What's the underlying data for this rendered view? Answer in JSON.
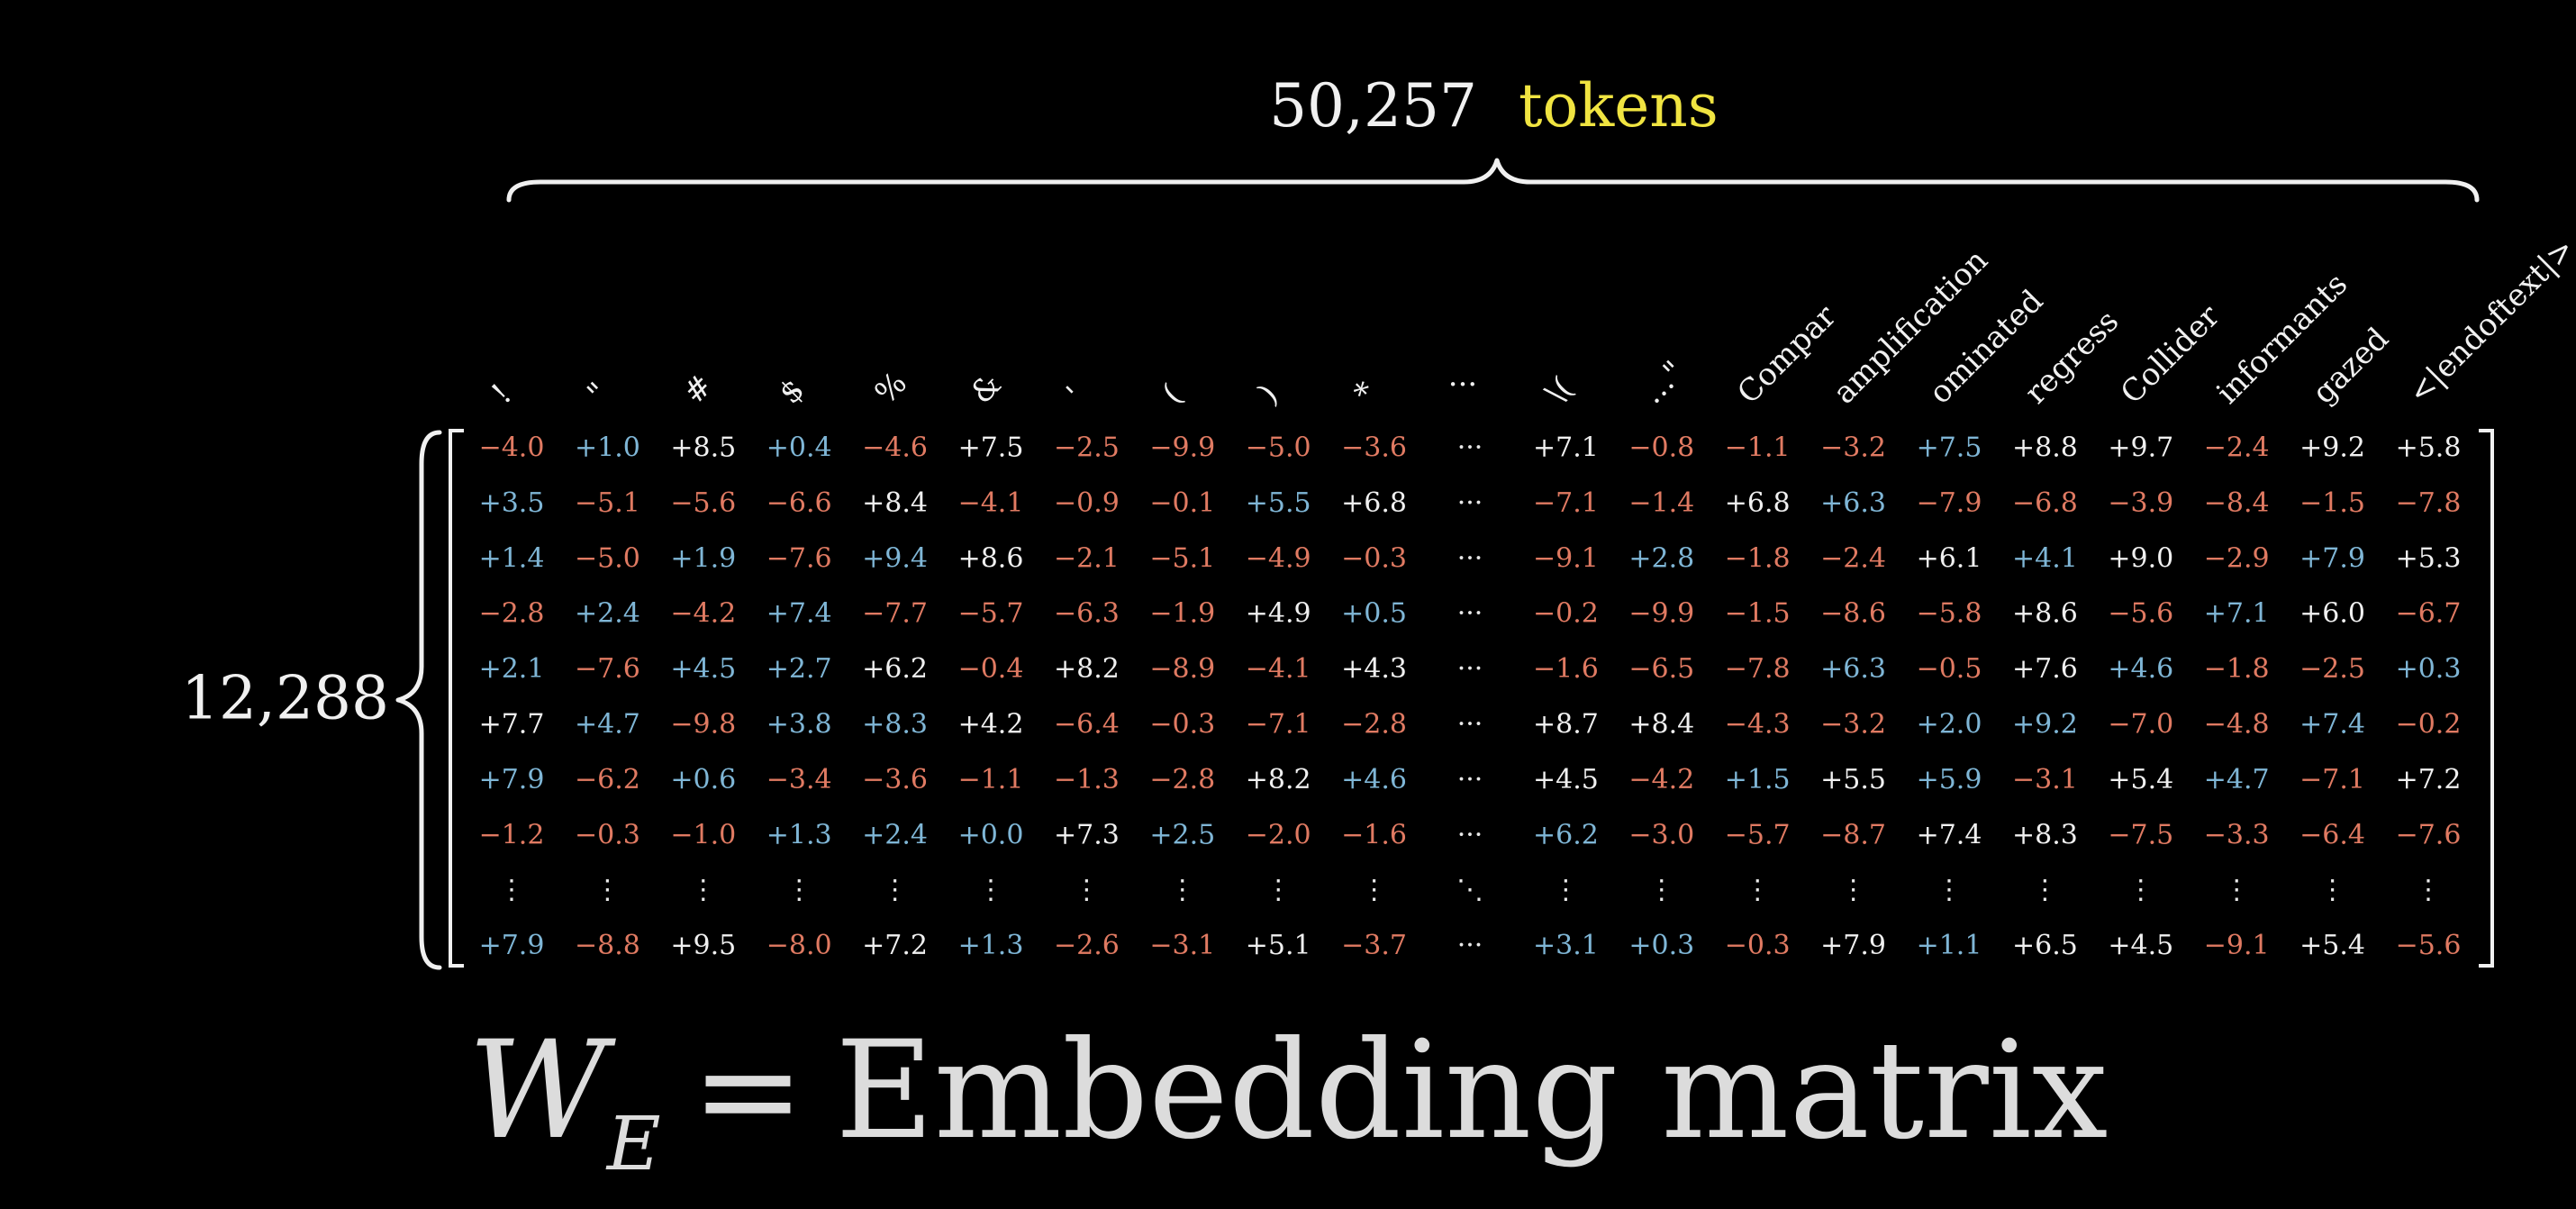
{
  "title": {
    "count": "50,257",
    "unit": "tokens"
  },
  "row_label": "12,288",
  "caption": {
    "symbol": "W",
    "subscript": "E",
    "equals": "=",
    "text": "Embedding matrix"
  },
  "colors": {
    "background": "#000000",
    "positive": "#7fb6d6",
    "negative": "#e07a62",
    "neutral_strong": "#f0f0f0",
    "tokens_word": "#f0e441",
    "caption": "#dcdcdc"
  },
  "ellipsis": {
    "horizontal": "···",
    "vertical": "⋮",
    "diagonal": "⋱"
  },
  "columns": [
    "!",
    "\"",
    "#",
    "$",
    "%",
    "&",
    "'",
    "(",
    ")",
    "*",
    "…",
    "\\(",
    "…\"",
    "Compar",
    "amplification",
    "ominated",
    "regress",
    "Collider",
    "informants",
    "gazed",
    "<|endoftext|>"
  ],
  "ellipsis_column_index": 10,
  "rows": [
    [
      "-4.0",
      "+1.0",
      "+8.5",
      "+0.4",
      "-4.6",
      "+7.5",
      "-2.5",
      "-9.9",
      "-5.0",
      "-3.6",
      "···",
      "+7.1",
      "-0.8",
      "-1.1",
      "-3.2",
      "+7.5",
      "+8.8",
      "+9.7",
      "-2.4",
      "+9.2",
      "+5.8"
    ],
    [
      "+3.5",
      "-5.1",
      "-5.6",
      "-6.6",
      "+8.4",
      "-4.1",
      "-0.9",
      "-0.1",
      "+5.5",
      "+6.8",
      "···",
      "-7.1",
      "-1.4",
      "+6.8",
      "+6.3",
      "-7.9",
      "-6.8",
      "-3.9",
      "-8.4",
      "-1.5",
      "-7.8"
    ],
    [
      "+1.4",
      "-5.0",
      "+1.9",
      "-7.6",
      "+9.4",
      "+8.6",
      "-2.1",
      "-5.1",
      "-4.9",
      "-0.3",
      "···",
      "-9.1",
      "+2.8",
      "-1.8",
      "-2.4",
      "+6.1",
      "+4.1",
      "+9.0",
      "-2.9",
      "+7.9",
      "+5.3"
    ],
    [
      "-2.8",
      "+2.4",
      "-4.2",
      "+7.4",
      "-7.7",
      "-5.7",
      "-6.3",
      "-1.9",
      "+4.9",
      "+0.5",
      "···",
      "-0.2",
      "-9.9",
      "-1.5",
      "-8.6",
      "-5.8",
      "+8.6",
      "-5.6",
      "+7.1",
      "+6.0",
      "-6.7"
    ],
    [
      "+2.1",
      "-7.6",
      "+4.5",
      "+2.7",
      "+6.2",
      "-0.4",
      "+8.2",
      "-8.9",
      "-4.1",
      "+4.3",
      "···",
      "-1.6",
      "-6.5",
      "-7.8",
      "+6.3",
      "-0.5",
      "+7.6",
      "+4.6",
      "-1.8",
      "-2.5",
      "+0.3"
    ],
    [
      "+7.7",
      "+4.7",
      "-9.8",
      "+3.8",
      "+8.3",
      "+4.2",
      "-6.4",
      "-0.3",
      "-7.1",
      "-2.8",
      "···",
      "+8.7",
      "+8.4",
      "-4.3",
      "-3.2",
      "+2.0",
      "+9.2",
      "-7.0",
      "-4.8",
      "+7.4",
      "-0.2"
    ],
    [
      "+7.9",
      "-6.2",
      "+0.6",
      "-3.4",
      "-3.6",
      "-1.1",
      "-1.3",
      "-2.8",
      "+8.2",
      "+4.6",
      "···",
      "+4.5",
      "-4.2",
      "+1.5",
      "+5.5",
      "+5.9",
      "-3.1",
      "+5.4",
      "+4.7",
      "-7.1",
      "+7.2"
    ],
    [
      "-1.2",
      "-0.3",
      "-1.0",
      "+1.3",
      "+2.4",
      "+0.0",
      "+7.3",
      "+2.5",
      "-2.0",
      "-1.6",
      "···",
      "+6.2",
      "-3.0",
      "-5.7",
      "-8.7",
      "+7.4",
      "+8.3",
      "-7.5",
      "-3.3",
      "-6.4",
      "-7.6"
    ],
    [
      "⋮",
      "⋮",
      "⋮",
      "⋮",
      "⋮",
      "⋮",
      "⋮",
      "⋮",
      "⋮",
      "⋮",
      "⋱",
      "⋮",
      "⋮",
      "⋮",
      "⋮",
      "⋮",
      "⋮",
      "⋮",
      "⋮",
      "⋮",
      "⋮"
    ],
    [
      "+7.9",
      "-8.8",
      "+9.5",
      "-8.0",
      "+7.2",
      "+1.3",
      "-2.6",
      "-3.1",
      "+5.1",
      "-3.7",
      "···",
      "+3.1",
      "+0.3",
      "-0.3",
      "+7.9",
      "+1.1",
      "+6.5",
      "+4.5",
      "-9.1",
      "+5.4",
      "-5.6"
    ]
  ]
}
